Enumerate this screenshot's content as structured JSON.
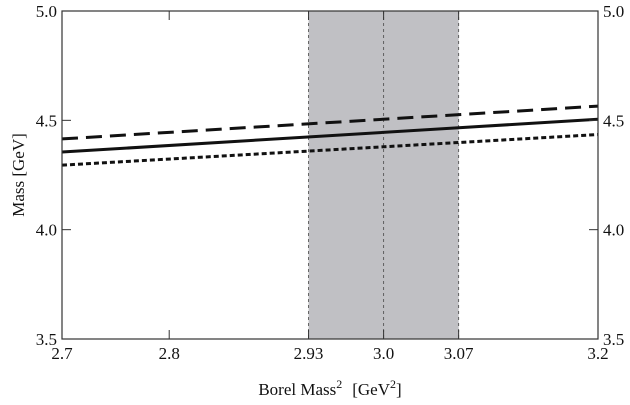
{
  "chart_data": {
    "type": "line",
    "xlabel": "Borel Mass",
    "xlabel_sup": "2",
    "xlabel_unit_prefix": "[GeV",
    "xlabel_unit_sup": "2",
    "xlabel_unit_suffix": "]",
    "ylabel": "Mass  [GeV]",
    "xlim": [
      2.7,
      3.2
    ],
    "ylim": [
      3.5,
      5.0
    ],
    "xticks": [
      {
        "value": 2.7,
        "label": "2.7"
      },
      {
        "value": 2.8,
        "label": "2.8"
      },
      {
        "value": 2.93,
        "label": "2.93"
      },
      {
        "value": 3.0,
        "label": "3.0"
      },
      {
        "value": 3.07,
        "label": "3.07"
      },
      {
        "value": 3.2,
        "label": "3.2"
      }
    ],
    "yticks": [
      {
        "value": 3.5,
        "label": "3.5"
      },
      {
        "value": 4.0,
        "label": "4.0"
      },
      {
        "value": 4.5,
        "label": "4.5"
      },
      {
        "value": 5.0,
        "label": "5.0"
      }
    ],
    "shaded_region": {
      "x": [
        2.93,
        3.07
      ],
      "center": 3.0,
      "color": "#c0c0c4"
    },
    "grid": false,
    "series": [
      {
        "style": "dashed",
        "x": [
          2.7,
          3.2
        ],
        "y": [
          4.415,
          4.565
        ]
      },
      {
        "style": "solid",
        "x": [
          2.7,
          3.2
        ],
        "y": [
          4.355,
          4.505
        ]
      },
      {
        "style": "dotted",
        "x": [
          2.7,
          3.2
        ],
        "y": [
          4.295,
          4.435
        ]
      }
    ]
  }
}
